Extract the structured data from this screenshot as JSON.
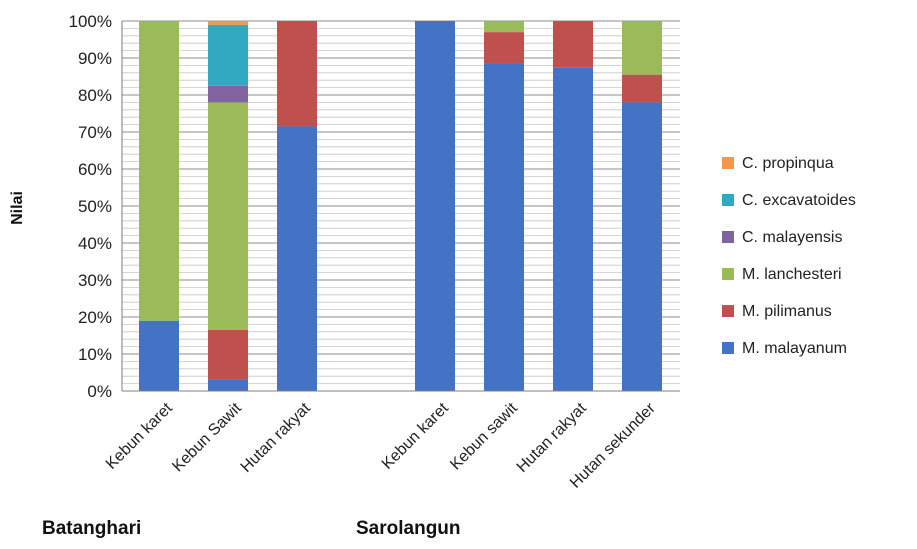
{
  "chart_data": {
    "type": "bar",
    "stacked": "percent",
    "ylabel": "Nilai",
    "ylim": [
      0,
      100
    ],
    "yticks": [
      "0%",
      "10%",
      "20%",
      "30%",
      "40%",
      "50%",
      "60%",
      "70%",
      "80%",
      "90%",
      "100%"
    ],
    "grid": true,
    "legend_position": "right",
    "groups": [
      {
        "label": "Batanghari",
        "categories": [
          "Kebun karet",
          "Kebun  Sawit",
          "Hutan rakyat"
        ]
      },
      {
        "label": "Sarolangun",
        "categories": [
          "Kebun karet",
          "Kebun  sawit",
          "Hutan rakyat",
          "Hutan sekunder"
        ]
      }
    ],
    "series": [
      {
        "name": "M. malayanum",
        "color": "#4472C4",
        "values": [
          19,
          3,
          71.5,
          100,
          88.5,
          87.5,
          78
        ]
      },
      {
        "name": "M. pilimanus",
        "color": "#C0504D",
        "values": [
          0,
          13.5,
          28.5,
          0,
          8.5,
          12.5,
          7.5
        ]
      },
      {
        "name": "M. lanchesteri",
        "color": "#9BBB59",
        "values": [
          81,
          61.5,
          0,
          0,
          3,
          0,
          14.5
        ]
      },
      {
        "name": "C. malayensis",
        "color": "#8064A2",
        "values": [
          0,
          4.5,
          0,
          0,
          0,
          0,
          0
        ]
      },
      {
        "name": "C. excavatoides",
        "color": "#31A9C0",
        "values": [
          0,
          16.5,
          0,
          0,
          0,
          0,
          0
        ]
      },
      {
        "name": "C. propinqua",
        "color": "#F79646",
        "values": [
          0,
          1,
          0,
          0,
          0,
          0,
          0
        ]
      }
    ]
  }
}
